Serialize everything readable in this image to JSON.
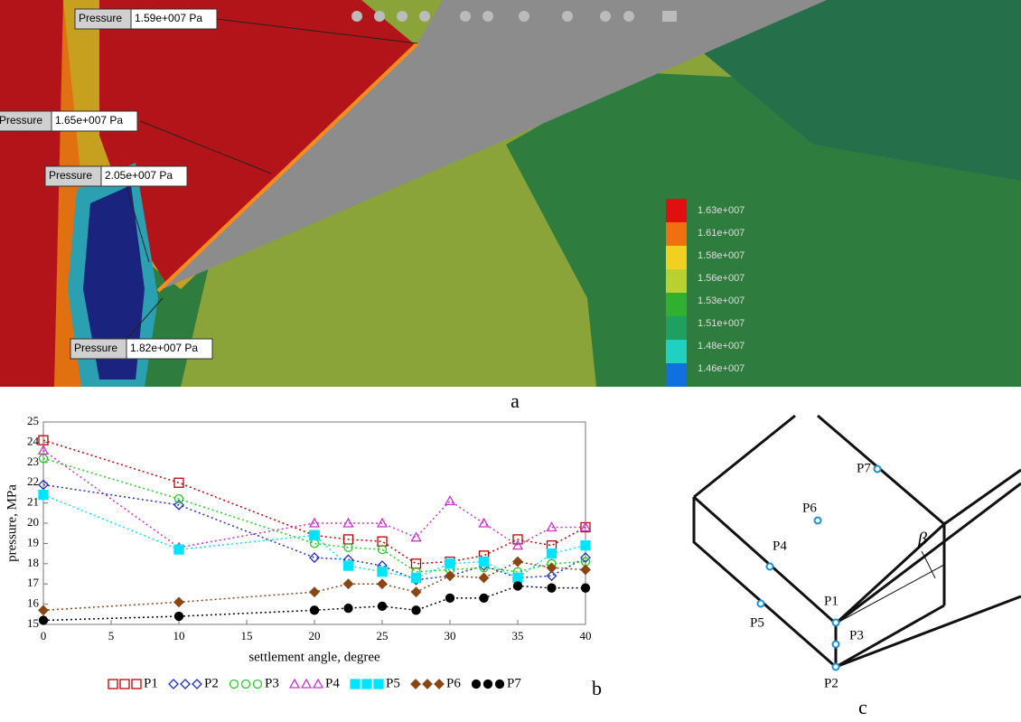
{
  "panel_a": {
    "callouts": [
      {
        "label": "Pressure",
        "value": "1.59e+007 Pa"
      },
      {
        "label": "Pressure",
        "value": "1.65e+007 Pa"
      },
      {
        "label": "Pressure",
        "value": "2.05e+007 Pa"
      },
      {
        "label": "Pressure",
        "value": "1.82e+007 Pa"
      }
    ],
    "colorbar": [
      "1.63e+007",
      "1.61e+007",
      "1.58e+007",
      "1.56e+007",
      "1.53e+007",
      "1.51e+007",
      "1.48e+007",
      "1.46e+007"
    ],
    "caption": "a"
  },
  "chart_data": {
    "type": "line",
    "xlabel": "settlement angle, degree",
    "ylabel": "pressure, MPa",
    "x": [
      0,
      10,
      20,
      22.5,
      25,
      27.5,
      30,
      32.5,
      35,
      37.5,
      40
    ],
    "xlim": [
      0,
      40
    ],
    "xticks": [
      0,
      5,
      10,
      15,
      20,
      25,
      30,
      35,
      40
    ],
    "ylim": [
      15,
      25
    ],
    "yticks": [
      15,
      16,
      17,
      18,
      19,
      20,
      21,
      22,
      23,
      24,
      25
    ],
    "series": [
      {
        "name": "P1",
        "color": "#c00000",
        "marker": "square-open",
        "values": [
          24.1,
          22.0,
          19.4,
          19.2,
          19.1,
          18.0,
          18.1,
          18.4,
          19.2,
          18.9,
          19.8
        ]
      },
      {
        "name": "P2",
        "color": "#1f2fbf",
        "marker": "diamond-open",
        "values": [
          21.9,
          20.9,
          18.3,
          18.2,
          17.9,
          17.2,
          17.4,
          17.9,
          17.3,
          17.4,
          18.3
        ]
      },
      {
        "name": "P3",
        "color": "#22cc22",
        "marker": "circle-open",
        "values": [
          23.2,
          21.2,
          19.0,
          18.8,
          18.7,
          17.6,
          17.7,
          17.8,
          17.6,
          18.0,
          18.1
        ]
      },
      {
        "name": "P4",
        "color": "#cc33cc",
        "marker": "triangle-open",
        "values": [
          23.6,
          18.8,
          20.0,
          20.0,
          20.0,
          19.3,
          21.1,
          20.0,
          18.9,
          19.8,
          19.8
        ]
      },
      {
        "name": "P5",
        "color": "#00e5ff",
        "marker": "square",
        "values": [
          21.4,
          18.7,
          19.4,
          17.9,
          17.6,
          17.3,
          18.0,
          18.1,
          17.3,
          18.5,
          18.9
        ]
      },
      {
        "name": "P6",
        "color": "#8b4513",
        "marker": "diamond",
        "values": [
          15.7,
          16.1,
          16.6,
          17.0,
          17.0,
          16.6,
          17.4,
          17.3,
          18.1,
          17.8,
          17.7
        ]
      },
      {
        "name": "P7",
        "color": "#000000",
        "marker": "circle",
        "values": [
          15.2,
          15.4,
          15.7,
          15.8,
          15.9,
          15.7,
          16.3,
          16.3,
          16.9,
          16.8,
          16.8
        ]
      }
    ],
    "caption": "b"
  },
  "panel_c": {
    "points": [
      "P1",
      "P2",
      "P3",
      "P4",
      "P5",
      "P6",
      "P7"
    ],
    "angle": "β",
    "caption": "c"
  }
}
